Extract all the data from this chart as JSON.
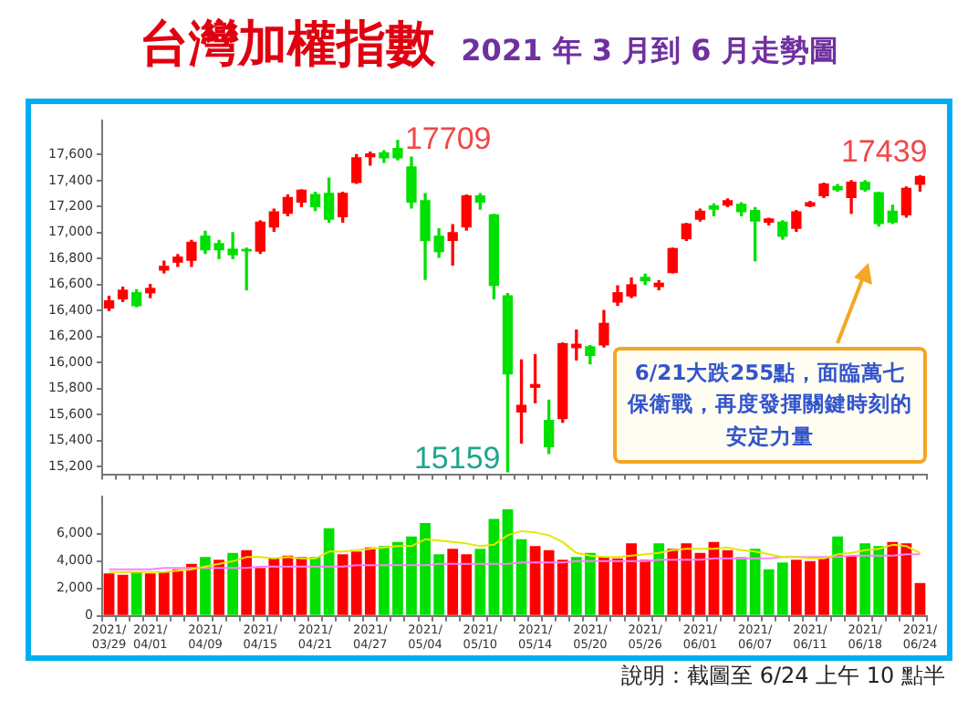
{
  "chart_data": [
    {
      "type": "candlestick",
      "title": "台灣加權指數",
      "subtitle": "2021 年 3 月到 6 月走勢圖",
      "categories": [
        "2021/03/29",
        null,
        null,
        "2021/04/01",
        null,
        null,
        null,
        "2021/04/09",
        null,
        null,
        null,
        "2021/04/15",
        null,
        null,
        null,
        "2021/04/21",
        null,
        null,
        null,
        "2021/04/27",
        null,
        null,
        null,
        "2021/05/04",
        null,
        null,
        null,
        "2021/05/10",
        null,
        null,
        null,
        "2021/05/14",
        null,
        null,
        null,
        "2021/05/20",
        null,
        null,
        null,
        "2021/05/26",
        null,
        null,
        null,
        "2021/06/01",
        null,
        null,
        null,
        "2021/06/07",
        null,
        null,
        null,
        "2021/06/11",
        null,
        null,
        null,
        "2021/06/18",
        null,
        null,
        null,
        "2021/06/24"
      ],
      "ohlc": [
        [
          16420,
          16510,
          16400,
          16475
        ],
        [
          16490,
          16580,
          16470,
          16556
        ],
        [
          16537,
          16560,
          16430,
          16438
        ],
        [
          16537,
          16600,
          16500,
          16570
        ],
        [
          16712,
          16780,
          16690,
          16740
        ],
        [
          16773,
          16830,
          16740,
          16811
        ],
        [
          16787,
          16940,
          16740,
          16925
        ],
        [
          16972,
          17010,
          16840,
          16868
        ],
        [
          16915,
          16940,
          16800,
          16868
        ],
        [
          16872,
          17000,
          16800,
          16830
        ],
        [
          16870,
          16880,
          16560,
          16860
        ],
        [
          16858,
          17090,
          16840,
          17080
        ],
        [
          17043,
          17180,
          17010,
          17160
        ],
        [
          17150,
          17290,
          17130,
          17270
        ],
        [
          17236,
          17330,
          17200,
          17326
        ],
        [
          17293,
          17310,
          17170,
          17200
        ],
        [
          17302,
          17420,
          17080,
          17104
        ],
        [
          17123,
          17310,
          17080,
          17302
        ],
        [
          17387,
          17600,
          17380,
          17576
        ],
        [
          17585,
          17620,
          17520,
          17605
        ],
        [
          17614,
          17630,
          17540,
          17576
        ],
        [
          17647,
          17709,
          17560,
          17576
        ],
        [
          17506,
          17580,
          17190,
          17236
        ],
        [
          17246,
          17300,
          16640,
          16939
        ],
        [
          16972,
          17030,
          16810,
          16854
        ],
        [
          16940,
          17060,
          16750,
          17000
        ],
        [
          17043,
          17290,
          17020,
          17283
        ],
        [
          17283,
          17300,
          17180,
          17236
        ],
        [
          17137,
          17140,
          16490,
          16594
        ],
        [
          16513,
          16530,
          15159,
          15913
        ],
        [
          15620,
          16020,
          15380,
          15670
        ],
        [
          15810,
          16060,
          15690,
          15830
        ],
        [
          15554,
          15710,
          15300,
          15353
        ],
        [
          15569,
          16150,
          15540,
          16145
        ],
        [
          16115,
          16250,
          16020,
          16140
        ],
        [
          16121,
          16130,
          15990,
          16055
        ],
        [
          16136,
          16400,
          16120,
          16301
        ],
        [
          16466,
          16590,
          16440,
          16537
        ],
        [
          16513,
          16650,
          16500,
          16598
        ],
        [
          16655,
          16680,
          16600,
          16630
        ],
        [
          16585,
          16630,
          16560,
          16610
        ],
        [
          16693,
          16880,
          16690,
          16877
        ],
        [
          16953,
          17070,
          16940,
          17066
        ],
        [
          17104,
          17180,
          17090,
          17165
        ],
        [
          17205,
          17220,
          17130,
          17180
        ],
        [
          17213,
          17260,
          17200,
          17246
        ],
        [
          17217,
          17230,
          17130,
          17161
        ],
        [
          17170,
          17190,
          16783,
          17090
        ],
        [
          17080,
          17110,
          17060,
          17105
        ],
        [
          17080,
          17090,
          16950,
          16972
        ],
        [
          17033,
          17170,
          17010,
          17160
        ],
        [
          17205,
          17240,
          17200,
          17230
        ],
        [
          17284,
          17380,
          17270,
          17373
        ],
        [
          17355,
          17370,
          17320,
          17330
        ],
        [
          17270,
          17400,
          17150,
          17387
        ],
        [
          17387,
          17400,
          17320,
          17331
        ],
        [
          17307,
          17310,
          17050,
          17071
        ],
        [
          17165,
          17210,
          17070,
          17080
        ],
        [
          17137,
          17350,
          17120,
          17340
        ],
        [
          17373,
          17439,
          17320,
          17431
        ]
      ],
      "colors": [
        "#ff0000",
        "#ff0000",
        "#00e000",
        "#ff0000",
        "#ff0000",
        "#ff0000",
        "#ff0000",
        "#00e000",
        "#00e000",
        "#00e000",
        "#00e000",
        "#ff0000",
        "#ff0000",
        "#ff0000",
        "#ff0000",
        "#00e000",
        "#00e000",
        "#ff0000",
        "#ff0000",
        "#ff0000",
        "#00e000",
        "#00e000",
        "#00e000",
        "#00e000",
        "#00e000",
        "#ff0000",
        "#ff0000",
        "#00e000",
        "#00e000",
        "#00e000",
        "#ff0000",
        "#ff0000",
        "#00e000",
        "#ff0000",
        "#ff0000",
        "#00e000",
        "#ff0000",
        "#ff0000",
        "#ff0000",
        "#00e000",
        "#ff0000",
        "#ff0000",
        "#ff0000",
        "#ff0000",
        "#00e000",
        "#ff0000",
        "#00e000",
        "#00e000",
        "#ff0000",
        "#00e000",
        "#ff0000",
        "#ff0000",
        "#ff0000",
        "#00e000",
        "#ff0000",
        "#00e000",
        "#00e000",
        "#00e000",
        "#ff0000",
        "#ff0000"
      ],
      "ylim": [
        15140,
        17860
      ],
      "yticks": [
        {
          "value": 15200,
          "label": "15,200"
        },
        {
          "value": 15400,
          "label": "15,400"
        },
        {
          "value": 15600,
          "label": "15,600"
        },
        {
          "value": 15800,
          "label": "15,800"
        },
        {
          "value": 16000,
          "label": "16,000"
        },
        {
          "value": 16200,
          "label": "16,200"
        },
        {
          "value": 16400,
          "label": "16,400"
        },
        {
          "value": 16600,
          "label": "16,600"
        },
        {
          "value": 16800,
          "label": "16,800"
        },
        {
          "value": 17000,
          "label": "17,000"
        },
        {
          "value": 17200,
          "label": "17,200"
        },
        {
          "value": 17400,
          "label": "17,400"
        },
        {
          "value": 17600,
          "label": "17,600"
        }
      ],
      "tick_labels": "y",
      "annotations": [
        "17709",
        "15159",
        "17439",
        "6/21大跌255點，面臨萬七保衛戰，再度發揮關鍵時刻的安定力量"
      ]
    },
    {
      "type": "bar",
      "categories": [
        "2021/03/29",
        null,
        null,
        "2021/04/01",
        null,
        null,
        null,
        "2021/04/09",
        null,
        null,
        null,
        "2021/04/15",
        null,
        null,
        null,
        "2021/04/21",
        null,
        null,
        null,
        "2021/04/27",
        null,
        null,
        null,
        "2021/05/04",
        null,
        null,
        null,
        "2021/05/10",
        null,
        null,
        null,
        "2021/05/14",
        null,
        null,
        null,
        "2021/05/20",
        null,
        null,
        null,
        "2021/05/26",
        null,
        null,
        null,
        "2021/06/01",
        null,
        null,
        null,
        "2021/06/07",
        null,
        null,
        null,
        "2021/06/11",
        null,
        null,
        null,
        "2021/06/18",
        null,
        null,
        null,
        "2021/06/24"
      ],
      "series": [
        {
          "type": "bar",
          "values": [
            3100,
            3000,
            3200,
            3100,
            3200,
            3400,
            3800,
            4300,
            4100,
            4600,
            4800,
            3500,
            4200,
            4400,
            4300,
            4300,
            6400,
            4500,
            4700,
            5000,
            5100,
            5400,
            5800,
            6800,
            4500,
            4900,
            4500,
            4900,
            7100,
            7800,
            5600,
            5100,
            4800,
            4100,
            4300,
            4600,
            4300,
            4200,
            5300,
            4100,
            5300,
            4900,
            5300,
            4600,
            5400,
            4800,
            4300,
            4900,
            3400,
            3900,
            4100,
            4000,
            4300,
            5800,
            4400,
            5300,
            5100,
            5400,
            5300,
            2400
          ],
          "colors": [
            "#ff0000",
            "#ff0000",
            "#00e000",
            "#ff0000",
            "#ff0000",
            "#ff0000",
            "#ff0000",
            "#00e000",
            "#ff0000",
            "#00e000",
            "#ff0000",
            "#ff0000",
            "#ff0000",
            "#ff0000",
            "#ff0000",
            "#00e000",
            "#00e000",
            "#ff0000",
            "#ff0000",
            "#ff0000",
            "#00e000",
            "#00e000",
            "#00e000",
            "#00e000",
            "#00e000",
            "#ff0000",
            "#ff0000",
            "#00e000",
            "#00e000",
            "#00e000",
            "#00e000",
            "#ff0000",
            "#ff0000",
            "#ff0000",
            "#00e000",
            "#00e000",
            "#ff0000",
            "#ff0000",
            "#ff0000",
            "#ff0000",
            "#00e000",
            "#ff0000",
            "#ff0000",
            "#ff0000",
            "#ff0000",
            "#ff0000",
            "#00e000",
            "#00e000",
            "#00e000",
            "#00e000",
            "#ff0000",
            "#ff0000",
            "#ff0000",
            "#00e000",
            "#ff0000",
            "#00e000",
            "#00e000",
            "#ff0000",
            "#ff0000",
            "#ff0000"
          ]
        },
        {
          "type": "line",
          "color": "#e6e600",
          "values": [
            3200,
            3200,
            3200,
            3200,
            3200,
            3300,
            3400,
            3600,
            3800,
            4000,
            4300,
            4300,
            4200,
            4300,
            4200,
            4200,
            4700,
            4700,
            4800,
            4900,
            5000,
            5100,
            5100,
            5600,
            5500,
            5400,
            5300,
            5100,
            5200,
            5900,
            6200,
            6100,
            5900,
            5400,
            4600,
            4400,
            4300,
            4300,
            4400,
            4500,
            4600,
            4800,
            4900,
            4900,
            4900,
            5000,
            4800,
            4700,
            4500,
            4300,
            4300,
            4200,
            4200,
            4500,
            4600,
            4800,
            4900,
            5200,
            5100,
            4600
          ]
        },
        {
          "type": "line",
          "color": "#ff80ff",
          "values": [
            3400,
            3400,
            3400,
            3400,
            3500,
            3500,
            3500,
            3500,
            3500,
            3500,
            3500,
            3600,
            3600,
            3600,
            3600,
            3600,
            3600,
            3600,
            3700,
            3700,
            3700,
            3700,
            3700,
            3700,
            3800,
            3800,
            3800,
            3800,
            3800,
            3800,
            3900,
            3900,
            3900,
            3900,
            4000,
            4000,
            4000,
            4000,
            4000,
            4000,
            4100,
            4100,
            4100,
            4100,
            4200,
            4200,
            4200,
            4200,
            4200,
            4300,
            4300,
            4300,
            4300,
            4300,
            4400,
            4400,
            4400,
            4400,
            4500,
            4500
          ]
        }
      ],
      "marker": "none",
      "ylim": [
        0,
        8700
      ],
      "yticks": [
        0,
        {
          "value": 2000,
          "label": "2,000"
        },
        {
          "value": 4000,
          "label": "4,000"
        },
        {
          "value": 6000,
          "label": "6,000"
        }
      ],
      "annotations": [
        "說明：截圖至 6/24 上午 10 點半"
      ]
    }
  ]
}
